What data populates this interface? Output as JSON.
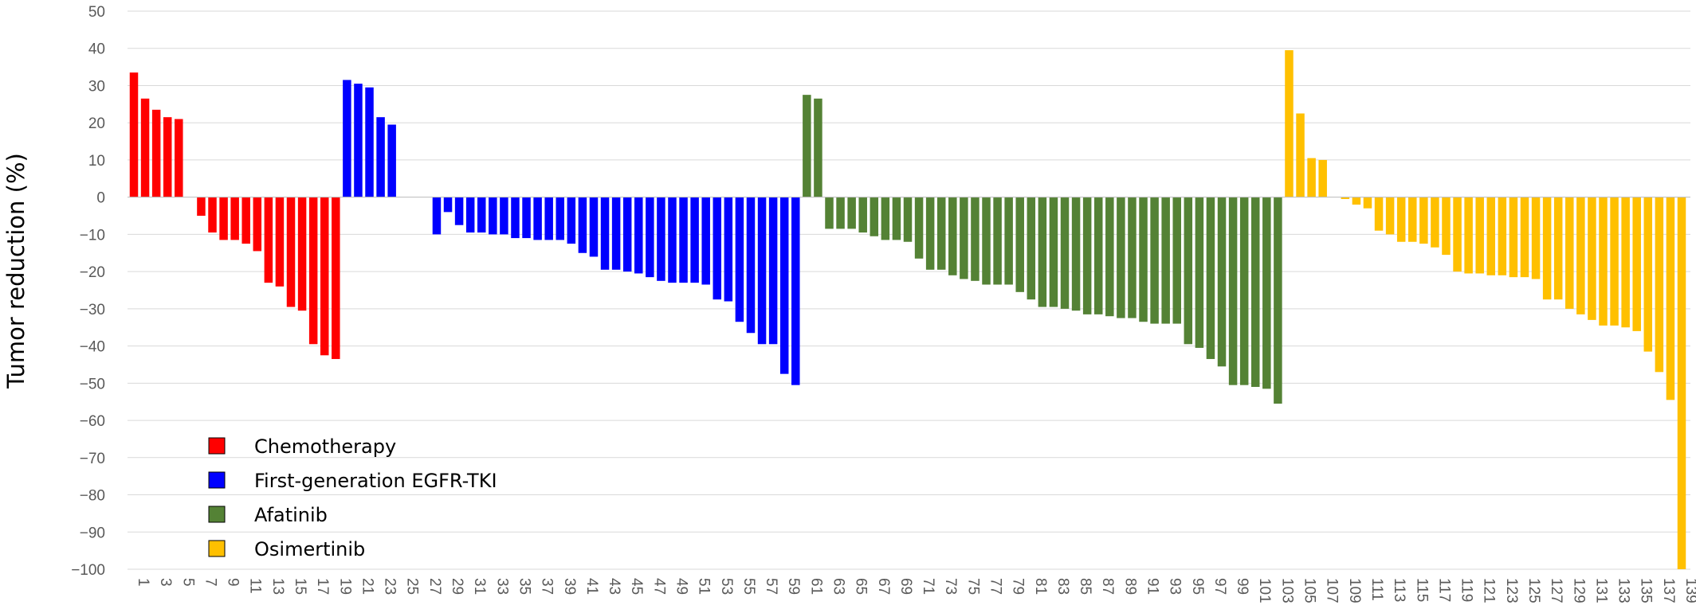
{
  "chart_data": {
    "type": "bar",
    "title": "",
    "xlabel": "",
    "ylabel": "Tumor reduction (%)",
    "ylim": [
      -100,
      50
    ],
    "yticks": [
      50,
      40,
      30,
      20,
      10,
      0,
      -10,
      -20,
      -30,
      -40,
      -50,
      -60,
      -70,
      -80,
      -90,
      -100
    ],
    "ytick_labels": [
      "50",
      "40",
      "30",
      "20",
      "10",
      "0",
      "−10",
      "−20",
      "−30",
      "−40",
      "−50",
      "−60",
      "−70",
      "−80",
      "−90",
      "−100"
    ],
    "x_range": [
      1,
      139
    ],
    "xtick_labels": [
      "1",
      "3",
      "5",
      "7",
      "9",
      "11",
      "13",
      "15",
      "17",
      "19",
      "21",
      "23",
      "25",
      "27",
      "29",
      "31",
      "33",
      "35",
      "37",
      "39",
      "41",
      "43",
      "45",
      "47",
      "49",
      "51",
      "53",
      "55",
      "57",
      "59",
      "61",
      "63",
      "65",
      "67",
      "69",
      "71",
      "73",
      "75",
      "77",
      "79",
      "81",
      "83",
      "85",
      "87",
      "89",
      "91",
      "93",
      "95",
      "97",
      "99",
      "101",
      "103",
      "105",
      "107",
      "109",
      "111",
      "113",
      "115",
      "117",
      "119",
      "121",
      "123",
      "125",
      "127",
      "129",
      "131",
      "133",
      "135",
      "137",
      "139"
    ],
    "grid": true,
    "legend_position": "bottom-left",
    "colors": {
      "Chemotherapy": "#ff0000",
      "First-generation EGFR-TKI": "#0000ff",
      "Afatinib": "#548235",
      "Osimertinib": "#ffc000"
    },
    "series": [
      {
        "name": "Chemotherapy",
        "x": [
          1,
          2,
          3,
          4,
          5,
          7,
          8,
          9,
          10,
          11,
          12,
          13,
          14,
          15,
          16,
          17,
          18,
          19
        ],
        "values": [
          33.5,
          26.5,
          23.5,
          21.5,
          21,
          -5,
          -9.5,
          -11.5,
          -11.5,
          -12.5,
          -14.5,
          -23,
          -24,
          -29.5,
          -30.5,
          -39.5,
          -42.5,
          -43.5
        ]
      },
      {
        "name": "First-generation EGFR-TKI",
        "x": [
          20,
          21,
          22,
          23,
          24,
          28,
          29,
          30,
          31,
          32,
          33,
          34,
          35,
          36,
          37,
          38,
          39,
          40,
          41,
          42,
          43,
          44,
          45,
          46,
          47,
          48,
          49,
          50,
          51,
          52,
          53,
          54,
          55,
          56,
          57,
          58,
          59,
          60
        ],
        "values": [
          31.5,
          30.5,
          29.5,
          21.5,
          19.5,
          -10,
          -4,
          -7.5,
          -9.5,
          -9.5,
          -10,
          -10,
          -11,
          -11,
          -11.5,
          -11.5,
          -11.5,
          -12.5,
          -15,
          -16,
          -19.5,
          -19.5,
          -20,
          -20.5,
          -21.5,
          -22.5,
          -23,
          -23,
          -23,
          -23.5,
          -27.5,
          -28,
          -33.5,
          -36.5,
          -39.5,
          -39.5,
          -47.5,
          -50.5
        ]
      },
      {
        "name": "Afatinib",
        "x": [
          61,
          62,
          63,
          64,
          65,
          66,
          67,
          68,
          69,
          70,
          71,
          72,
          73,
          74,
          75,
          76,
          77,
          78,
          79,
          80,
          81,
          82,
          83,
          84,
          85,
          86,
          87,
          88,
          89,
          90,
          91,
          92,
          93,
          94,
          95,
          96,
          97,
          98,
          99,
          100,
          101,
          102,
          103
        ],
        "values": [
          27.5,
          26.5,
          -8.5,
          -8.5,
          -8.5,
          -9.5,
          -10.5,
          -11.5,
          -11.5,
          -12,
          -16.5,
          -19.5,
          -19.5,
          -21,
          -22,
          -22.5,
          -23.5,
          -23.5,
          -23.5,
          -25.5,
          -27.5,
          -29.5,
          -29.5,
          -30,
          -30.5,
          -31.5,
          -31.5,
          -32,
          -32.5,
          -32.5,
          -33.5,
          -34,
          -34,
          -34,
          -39.5,
          -40.5,
          -43.5,
          -45.5,
          -50.5,
          -50.5,
          -51,
          -51.5,
          -55.5
        ]
      },
      {
        "name": "Osimertinib",
        "x": [
          104,
          105,
          106,
          107,
          109,
          110,
          111,
          112,
          113,
          114,
          115,
          116,
          117,
          118,
          119,
          120,
          121,
          122,
          123,
          124,
          125,
          126,
          127,
          128,
          129,
          130,
          131,
          132,
          133,
          134,
          135,
          136,
          137,
          138,
          139
        ],
        "values": [
          39.5,
          22.5,
          10.5,
          10,
          -0.5,
          -2,
          -3,
          -9,
          -10,
          -12,
          -12,
          -12.5,
          -13.5,
          -15.5,
          -20,
          -20.5,
          -20.5,
          -21,
          -21,
          -21.5,
          -21.5,
          -22,
          -27.5,
          -27.5,
          -30,
          -31.5,
          -33,
          -34.5,
          -34.5,
          -35,
          -36,
          -41.5,
          -47,
          -54.5,
          -100
        ]
      }
    ]
  }
}
